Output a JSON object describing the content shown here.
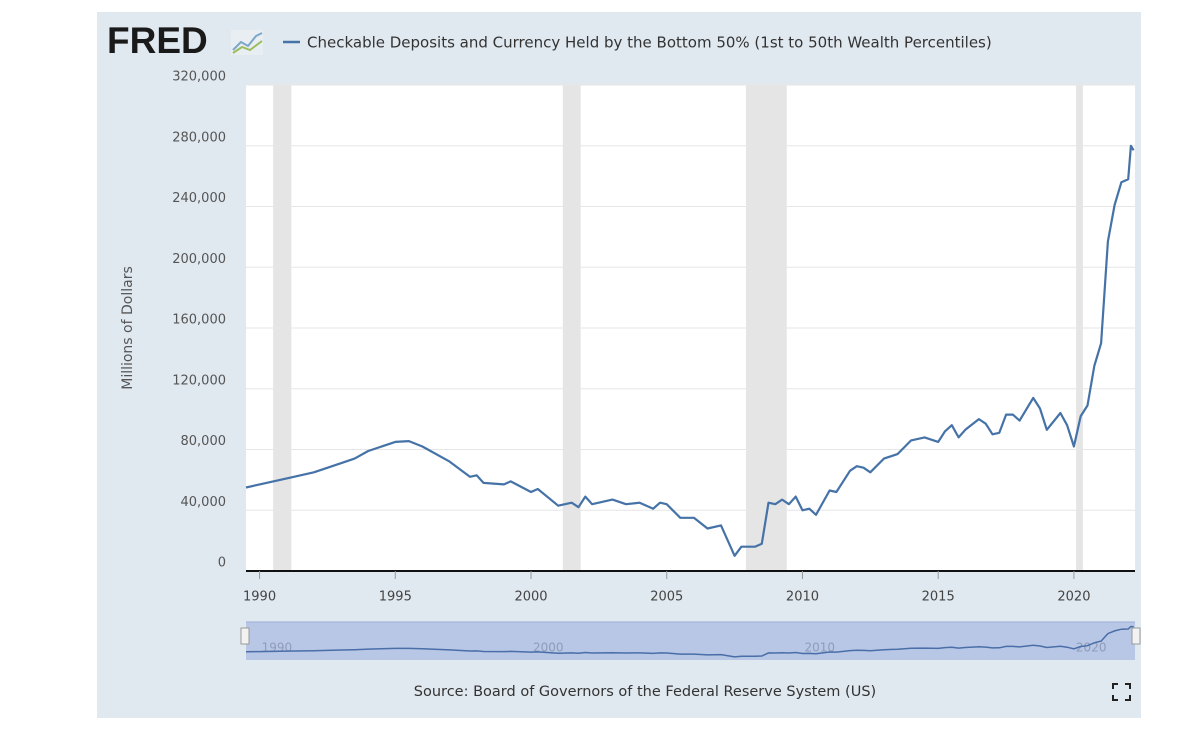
{
  "logo": "FRED",
  "chart_data": {
    "type": "line",
    "title": "Checkable Deposits and Currency Held by the Bottom 50% (1st to 50th Wealth Percentiles)",
    "y_label": "Millions of Dollars",
    "source": "Source: Board of Governors of the Federal Reserve System (US)",
    "x": [
      1989.5,
      1990,
      1991,
      1992,
      1993,
      1993.5,
      1994,
      1995,
      1995.5,
      1996,
      1997,
      1997.75,
      1998,
      1998.25,
      1999,
      1999.25,
      2000,
      2000.25,
      2001,
      2001.5,
      2001.75,
      2002,
      2002.25,
      2003,
      2003.5,
      2004,
      2004.5,
      2004.75,
      2005,
      2005.5,
      2006,
      2006.5,
      2007,
      2007.5,
      2007.75,
      2008.25,
      2008.5,
      2008.75,
      2009,
      2009.25,
      2009.5,
      2009.75,
      2010,
      2010.25,
      2010.5,
      2011,
      2011.25,
      2011.75,
      2012,
      2012.25,
      2012.5,
      2013,
      2013.5,
      2014,
      2014.5,
      2015,
      2015.25,
      2015.5,
      2015.75,
      2016,
      2016.5,
      2016.75,
      2017,
      2017.25,
      2017.5,
      2017.75,
      2018,
      2018.5,
      2018.75,
      2019,
      2019.5,
      2019.75,
      2020,
      2020.25,
      2020.5,
      2020.75,
      2021,
      2021.25,
      2021.5,
      2021.75,
      2022,
      2022.1,
      2022.2
    ],
    "series": [
      {
        "name": "Checkable Deposits and Currency Held by the Bottom 50% (1st to 50th Wealth Percentiles)",
        "color": "#4572a7",
        "values": [
          55000,
          57000,
          61000,
          65000,
          71000,
          74000,
          79000,
          85000,
          85500,
          82000,
          72000,
          62000,
          63000,
          58000,
          57000,
          59000,
          52000,
          54000,
          43000,
          45000,
          42000,
          49000,
          44000,
          47000,
          44000,
          45000,
          41000,
          45000,
          44000,
          35000,
          35000,
          28000,
          30000,
          10000,
          16000,
          16000,
          18000,
          45000,
          44000,
          47000,
          44000,
          49000,
          40000,
          41000,
          37000,
          53000,
          52000,
          66000,
          69000,
          68000,
          65000,
          74000,
          77000,
          86000,
          88000,
          85000,
          92000,
          96000,
          88000,
          93000,
          100000,
          97000,
          90000,
          91000,
          103000,
          103000,
          99000,
          114000,
          107000,
          93000,
          104000,
          96000,
          82000,
          102000,
          109000,
          135000,
          150000,
          217000,
          241000,
          256000,
          258000,
          280000,
          277000
        ]
      }
    ],
    "recessions": [
      [
        1990.5,
        1991.17
      ],
      [
        2001.17,
        2001.83
      ],
      [
        2007.92,
        2009.42
      ],
      [
        2020.08,
        2020.33
      ]
    ],
    "xlim": [
      1989.5,
      2022.25
    ],
    "xticks": [
      1990,
      1995,
      2000,
      2005,
      2010,
      2015,
      2020
    ],
    "ylim": [
      0,
      320000
    ],
    "yticks": [
      0,
      {
        "value": 40000,
        "label": "40,000"
      },
      {
        "value": 80000,
        "label": "80,000"
      },
      {
        "value": 120000,
        "label": "120,000"
      },
      {
        "value": 160000,
        "label": "160,000"
      },
      {
        "value": 200000,
        "label": "200,000"
      },
      {
        "value": 240000,
        "label": "240,000"
      },
      {
        "value": 280000,
        "label": "280,000"
      },
      {
        "value": 320000,
        "label": "320,000"
      }
    ],
    "grid": true,
    "navigator_ticks": [
      1990,
      2000,
      2010,
      2020
    ]
  }
}
